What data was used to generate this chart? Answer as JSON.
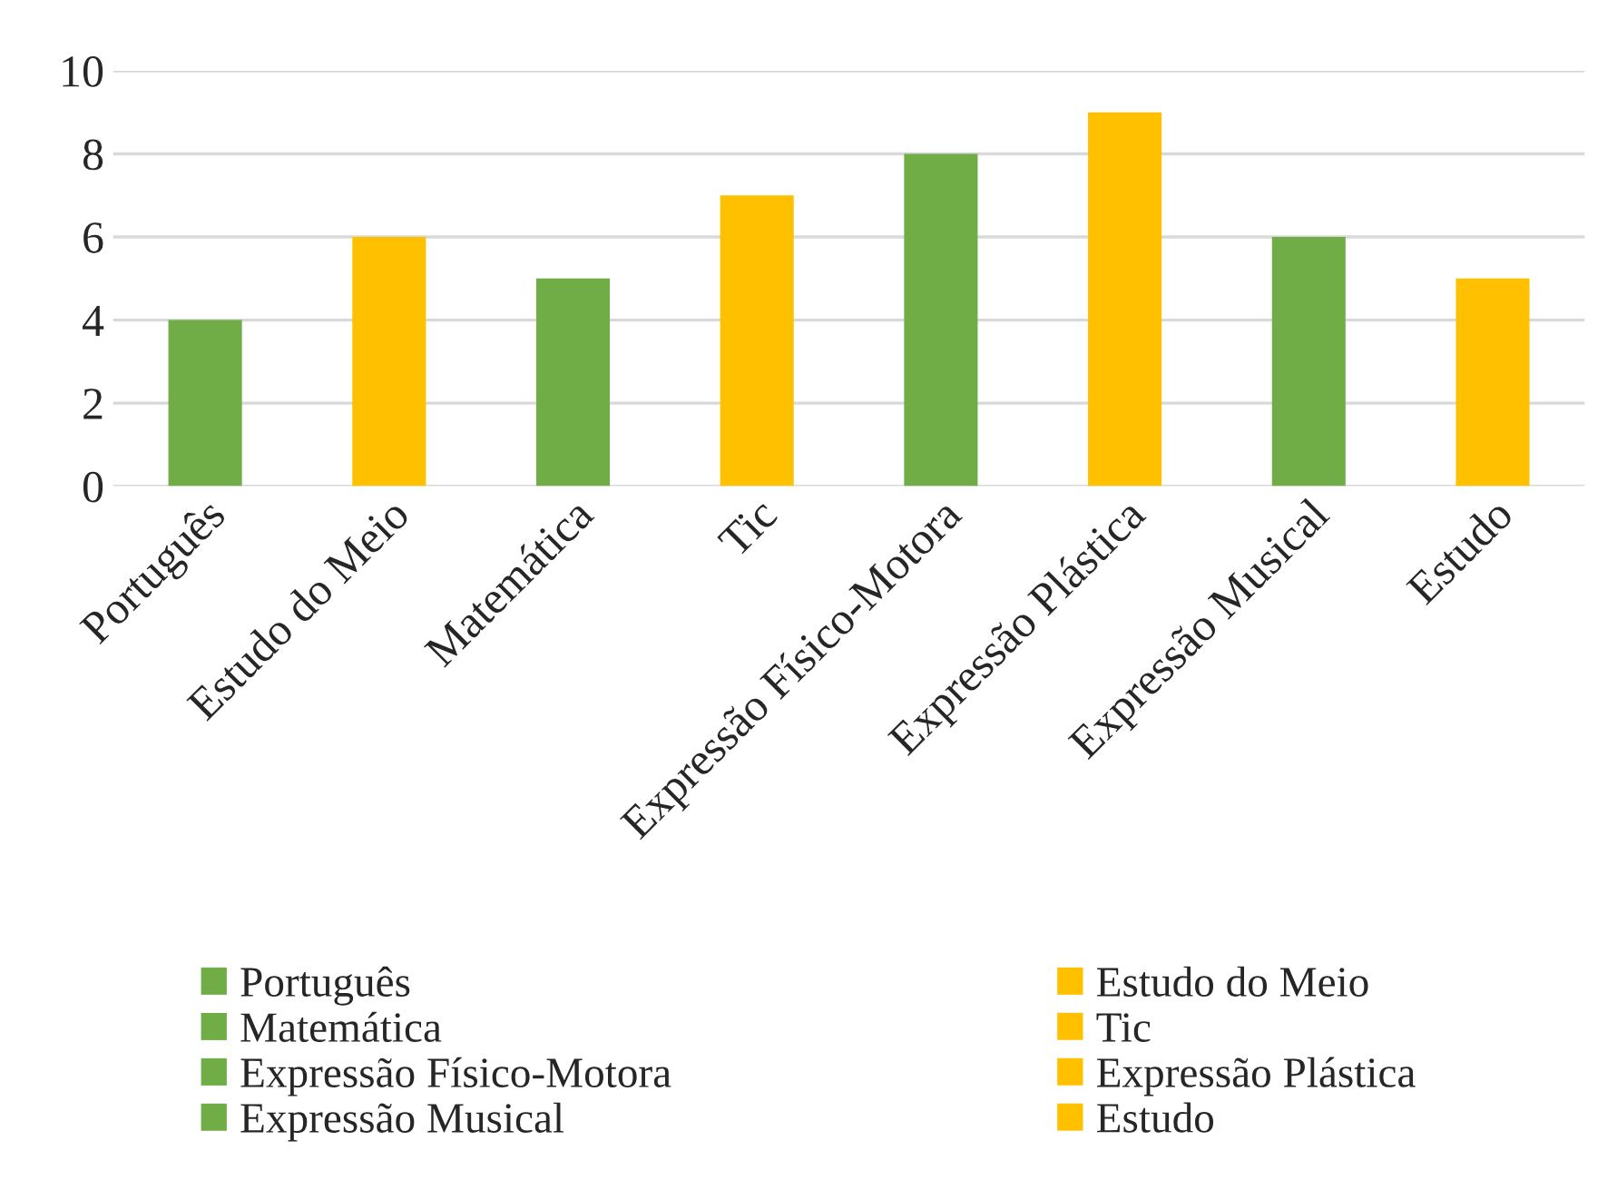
{
  "chart_data": {
    "type": "bar",
    "categories": [
      "Português",
      "Estudo do Meio",
      "Matemática",
      "Tic",
      "Expressão Físico-Motora",
      "Expressão Plástica",
      "Expressão Musical",
      "Estudo"
    ],
    "series": [
      {
        "name": "Português",
        "color": "#70ad47",
        "values": [
          4,
          null,
          null,
          null,
          null,
          null,
          null,
          null
        ]
      },
      {
        "name": "Estudo do Meio",
        "color": "#ffc000",
        "values": [
          null,
          6,
          null,
          null,
          null,
          null,
          null,
          null
        ]
      },
      {
        "name": "Matemática",
        "color": "#70ad47",
        "values": [
          null,
          null,
          5,
          null,
          null,
          null,
          null,
          null
        ]
      },
      {
        "name": "Tic",
        "color": "#ffc000",
        "values": [
          null,
          null,
          null,
          7,
          null,
          null,
          null,
          null
        ]
      },
      {
        "name": "Expressão Físico-Motora",
        "color": "#70ad47",
        "values": [
          null,
          null,
          null,
          null,
          8,
          null,
          null,
          null
        ]
      },
      {
        "name": "Expressão Plástica",
        "color": "#ffc000",
        "values": [
          null,
          null,
          null,
          null,
          null,
          9,
          null,
          null
        ]
      },
      {
        "name": "Expressão Musical",
        "color": "#70ad47",
        "values": [
          null,
          null,
          null,
          null,
          null,
          null,
          6,
          null
        ]
      },
      {
        "name": "Estudo",
        "color": "#ffc000",
        "values": [
          null,
          null,
          null,
          null,
          null,
          null,
          null,
          5
        ]
      }
    ],
    "ylim": [
      0,
      10
    ],
    "yticks": [
      0,
      2,
      4,
      6,
      8,
      10
    ],
    "grid": "y",
    "legend": "bottom"
  }
}
